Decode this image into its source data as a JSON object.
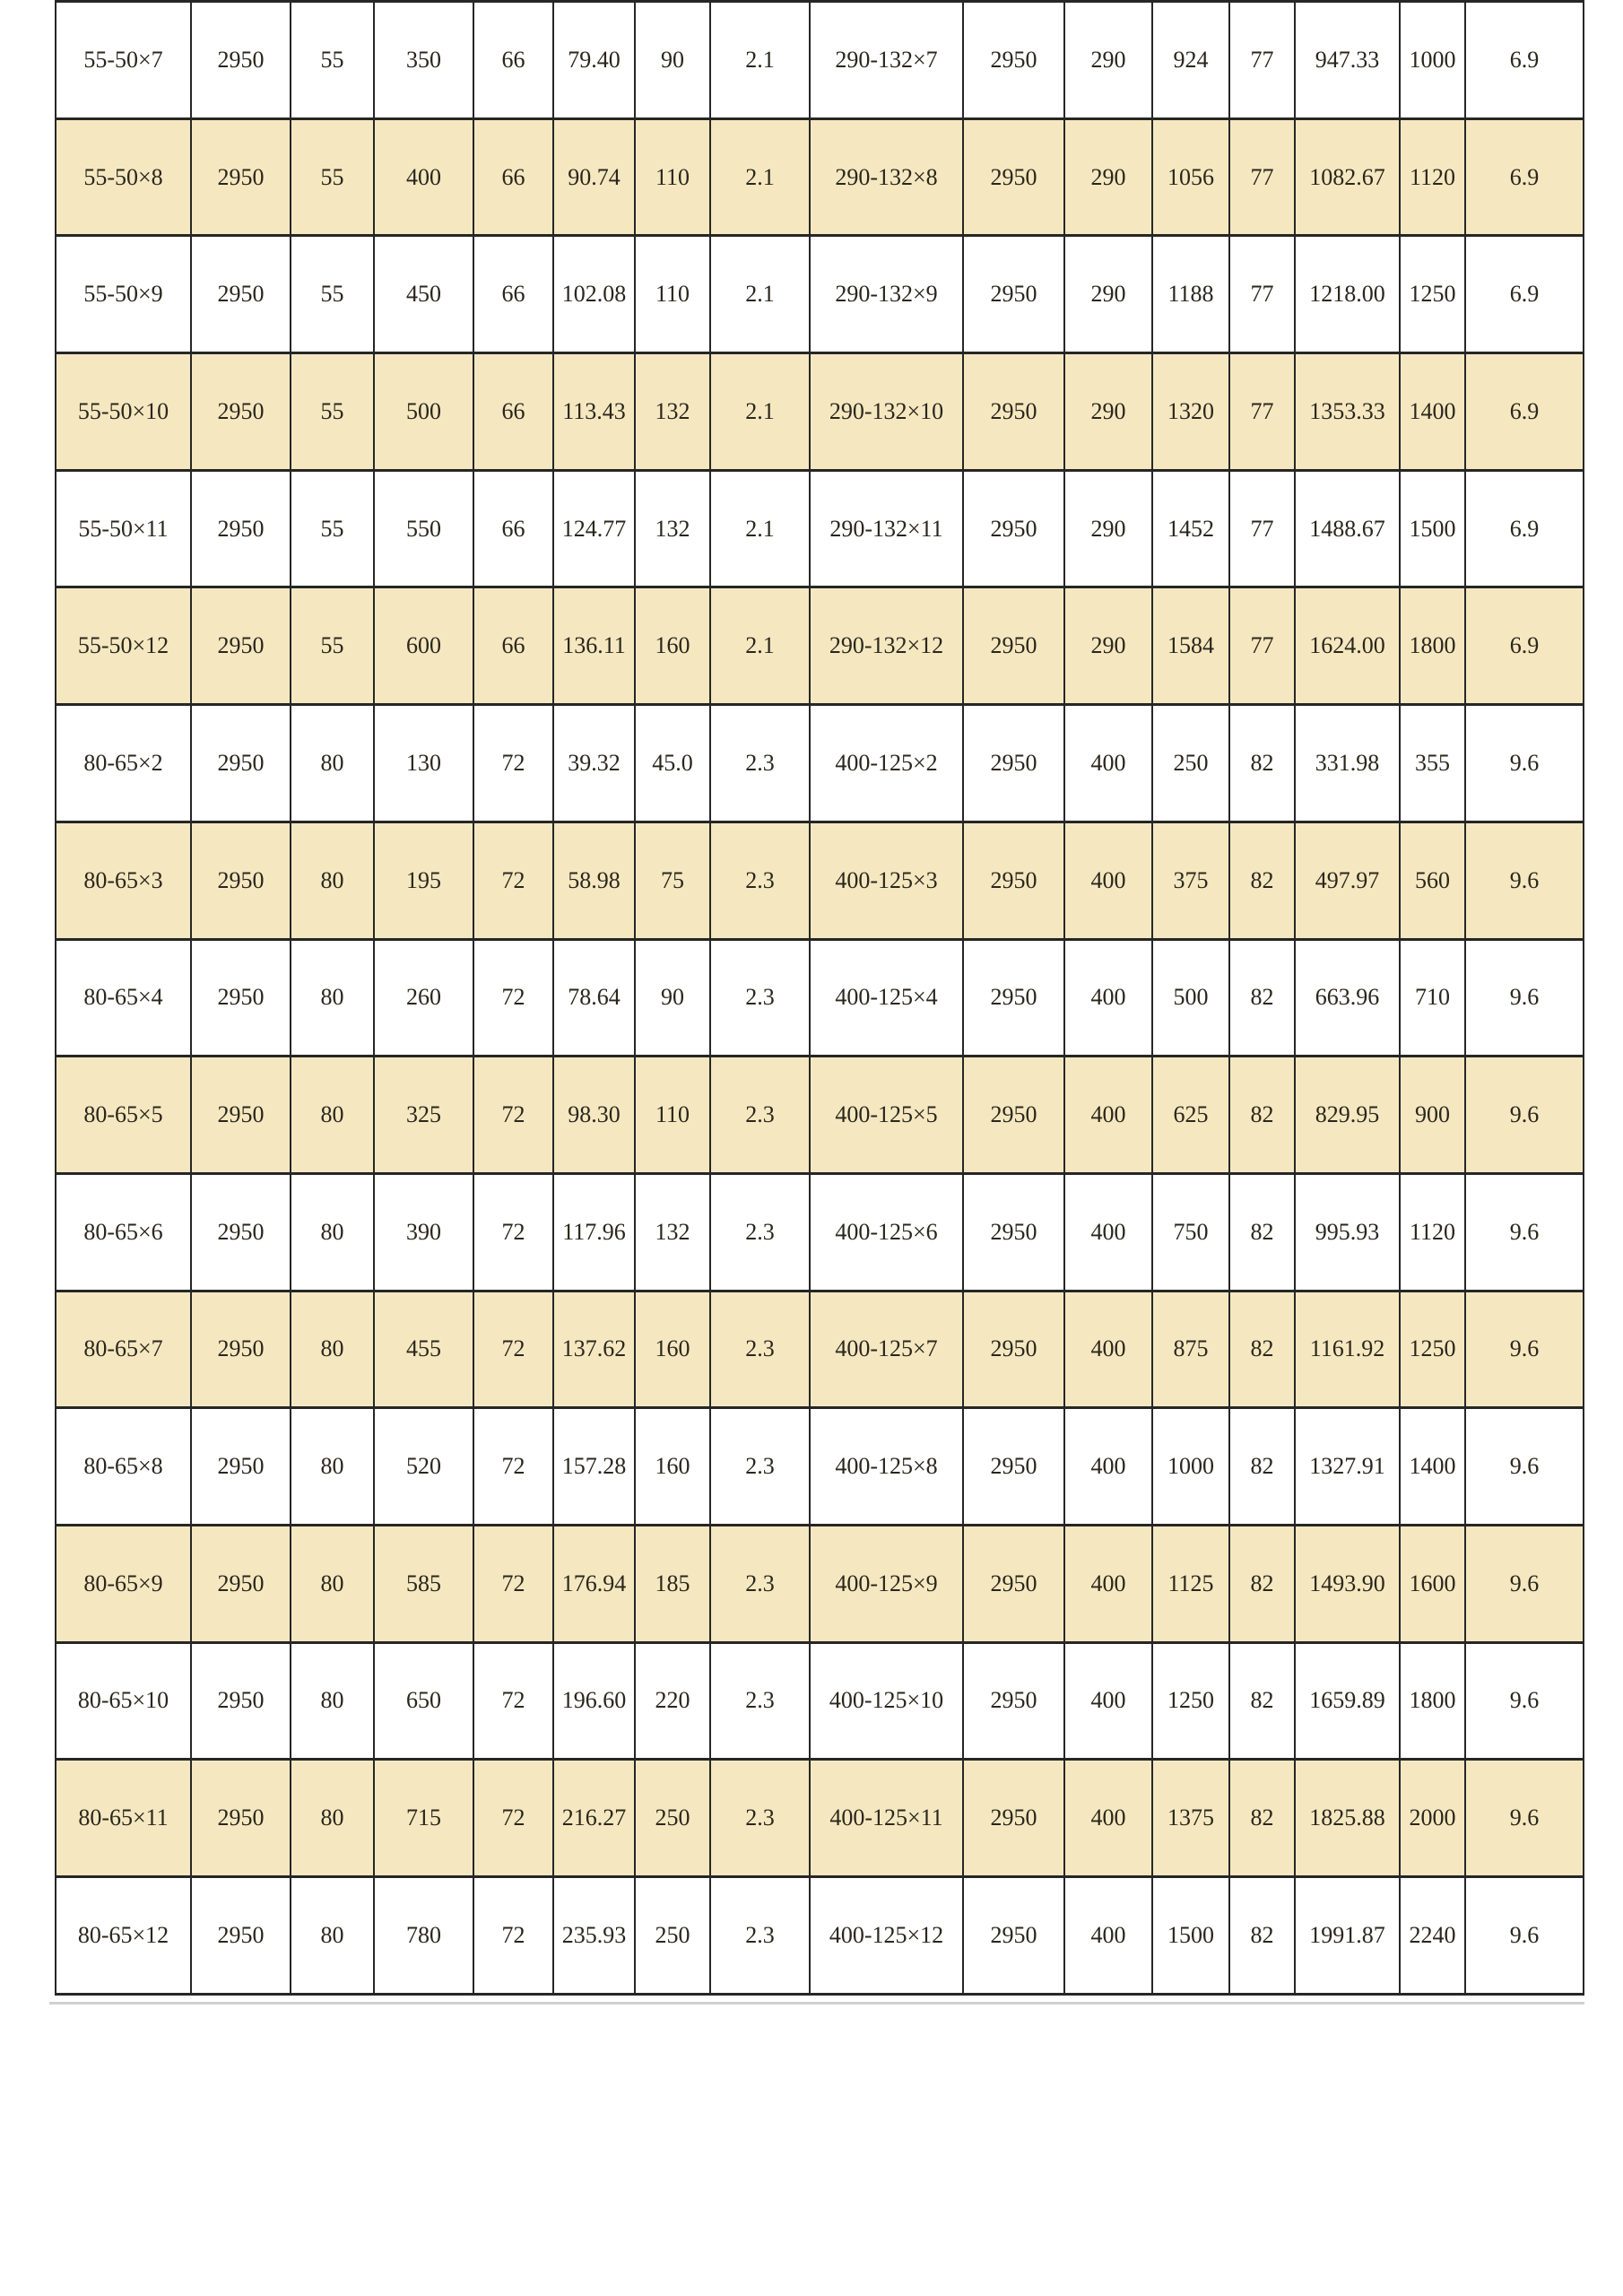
{
  "colors": {
    "border": "#262626",
    "row_base": "#ffffff",
    "row_alt": "#f5e8c0",
    "text": "#2a261c",
    "shadow_line": "#c9c9c9"
  },
  "table": {
    "rows": [
      {
        "cells": [
          "55-50×7",
          "2950",
          "55",
          "350",
          "66",
          "79.40",
          "90",
          "2.1",
          "290-132×7",
          "2950",
          "290",
          "924",
          "77",
          "947.33",
          "1000",
          "6.9"
        ]
      },
      {
        "cells": [
          "55-50×8",
          "2950",
          "55",
          "400",
          "66",
          "90.74",
          "110",
          "2.1",
          "290-132×8",
          "2950",
          "290",
          "1056",
          "77",
          "1082.67",
          "1120",
          "6.9"
        ]
      },
      {
        "cells": [
          "55-50×9",
          "2950",
          "55",
          "450",
          "66",
          "102.08",
          "110",
          "2.1",
          "290-132×9",
          "2950",
          "290",
          "1188",
          "77",
          "1218.00",
          "1250",
          "6.9"
        ]
      },
      {
        "cells": [
          "55-50×10",
          "2950",
          "55",
          "500",
          "66",
          "113.43",
          "132",
          "2.1",
          "290-132×10",
          "2950",
          "290",
          "1320",
          "77",
          "1353.33",
          "1400",
          "6.9"
        ]
      },
      {
        "cells": [
          "55-50×11",
          "2950",
          "55",
          "550",
          "66",
          "124.77",
          "132",
          "2.1",
          "290-132×11",
          "2950",
          "290",
          "1452",
          "77",
          "1488.67",
          "1500",
          "6.9"
        ]
      },
      {
        "cells": [
          "55-50×12",
          "2950",
          "55",
          "600",
          "66",
          "136.11",
          "160",
          "2.1",
          "290-132×12",
          "2950",
          "290",
          "1584",
          "77",
          "1624.00",
          "1800",
          "6.9"
        ]
      },
      {
        "cells": [
          "80-65×2",
          "2950",
          "80",
          "130",
          "72",
          "39.32",
          "45.0",
          "2.3",
          "400-125×2",
          "2950",
          "400",
          "250",
          "82",
          "331.98",
          "355",
          "9.6"
        ]
      },
      {
        "cells": [
          "80-65×3",
          "2950",
          "80",
          "195",
          "72",
          "58.98",
          "75",
          "2.3",
          "400-125×3",
          "2950",
          "400",
          "375",
          "82",
          "497.97",
          "560",
          "9.6"
        ]
      },
      {
        "cells": [
          "80-65×4",
          "2950",
          "80",
          "260",
          "72",
          "78.64",
          "90",
          "2.3",
          "400-125×4",
          "2950",
          "400",
          "500",
          "82",
          "663.96",
          "710",
          "9.6"
        ]
      },
      {
        "cells": [
          "80-65×5",
          "2950",
          "80",
          "325",
          "72",
          "98.30",
          "110",
          "2.3",
          "400-125×5",
          "2950",
          "400",
          "625",
          "82",
          "829.95",
          "900",
          "9.6"
        ]
      },
      {
        "cells": [
          "80-65×6",
          "2950",
          "80",
          "390",
          "72",
          "117.96",
          "132",
          "2.3",
          "400-125×6",
          "2950",
          "400",
          "750",
          "82",
          "995.93",
          "1120",
          "9.6"
        ]
      },
      {
        "cells": [
          "80-65×7",
          "2950",
          "80",
          "455",
          "72",
          "137.62",
          "160",
          "2.3",
          "400-125×7",
          "2950",
          "400",
          "875",
          "82",
          "1161.92",
          "1250",
          "9.6"
        ]
      },
      {
        "cells": [
          "80-65×8",
          "2950",
          "80",
          "520",
          "72",
          "157.28",
          "160",
          "2.3",
          "400-125×8",
          "2950",
          "400",
          "1000",
          "82",
          "1327.91",
          "1400",
          "9.6"
        ]
      },
      {
        "cells": [
          "80-65×9",
          "2950",
          "80",
          "585",
          "72",
          "176.94",
          "185",
          "2.3",
          "400-125×9",
          "2950",
          "400",
          "1125",
          "82",
          "1493.90",
          "1600",
          "9.6"
        ]
      },
      {
        "cells": [
          "80-65×10",
          "2950",
          "80",
          "650",
          "72",
          "196.60",
          "220",
          "2.3",
          "400-125×10",
          "2950",
          "400",
          "1250",
          "82",
          "1659.89",
          "1800",
          "9.6"
        ]
      },
      {
        "cells": [
          "80-65×11",
          "2950",
          "80",
          "715",
          "72",
          "216.27",
          "250",
          "2.3",
          "400-125×11",
          "2950",
          "400",
          "1375",
          "82",
          "1825.88",
          "2000",
          "9.6"
        ]
      },
      {
        "cells": [
          "80-65×12",
          "2950",
          "80",
          "780",
          "72",
          "235.93",
          "250",
          "2.3",
          "400-125×12",
          "2950",
          "400",
          "1500",
          "82",
          "1991.87",
          "2240",
          "9.6"
        ]
      }
    ]
  }
}
